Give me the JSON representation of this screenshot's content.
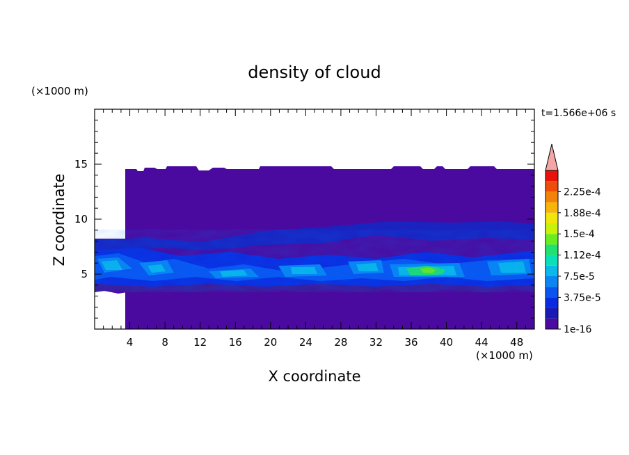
{
  "chart_data": {
    "type": "heatmap",
    "title": "density of cloud",
    "xlabel": "X coordinate",
    "ylabel": "Z coordinate",
    "x_unit": "(×1000 m)",
    "y_unit": "(×1000 m)",
    "time_label": "t=1.566e+06 s",
    "xlim": [
      0,
      50
    ],
    "ylim": [
      0,
      20
    ],
    "x_ticks": [
      4,
      8,
      12,
      16,
      20,
      24,
      28,
      32,
      36,
      40,
      44,
      48
    ],
    "y_ticks": [
      5,
      10,
      15
    ],
    "colorbar": {
      "labels": [
        "2.25e-4",
        "1.88e-4",
        "1.5e-4",
        "1.12e-4",
        "7.5e-5",
        "3.75e-5",
        "1e-16"
      ],
      "colors": [
        "#4b0aa0",
        "#1a1ab4",
        "#0b2be0",
        "#0a55f0",
        "#0a86f2",
        "#0ab8ea",
        "#0ae0b8",
        "#20e070",
        "#6aed1e",
        "#c8f20a",
        "#f0e60a",
        "#f7b40a",
        "#f2820a",
        "#ee4c0a",
        "#e8140a"
      ],
      "extend_color": "#f4a6a6"
    },
    "cloud_top_km": 14.5,
    "cloud_base_km": 3.5,
    "field_description": "cloud density layer between ~3.5 and ~14.5 km; highest values (~1.5e-4) near z≈5 km, x≈34–40 km"
  }
}
